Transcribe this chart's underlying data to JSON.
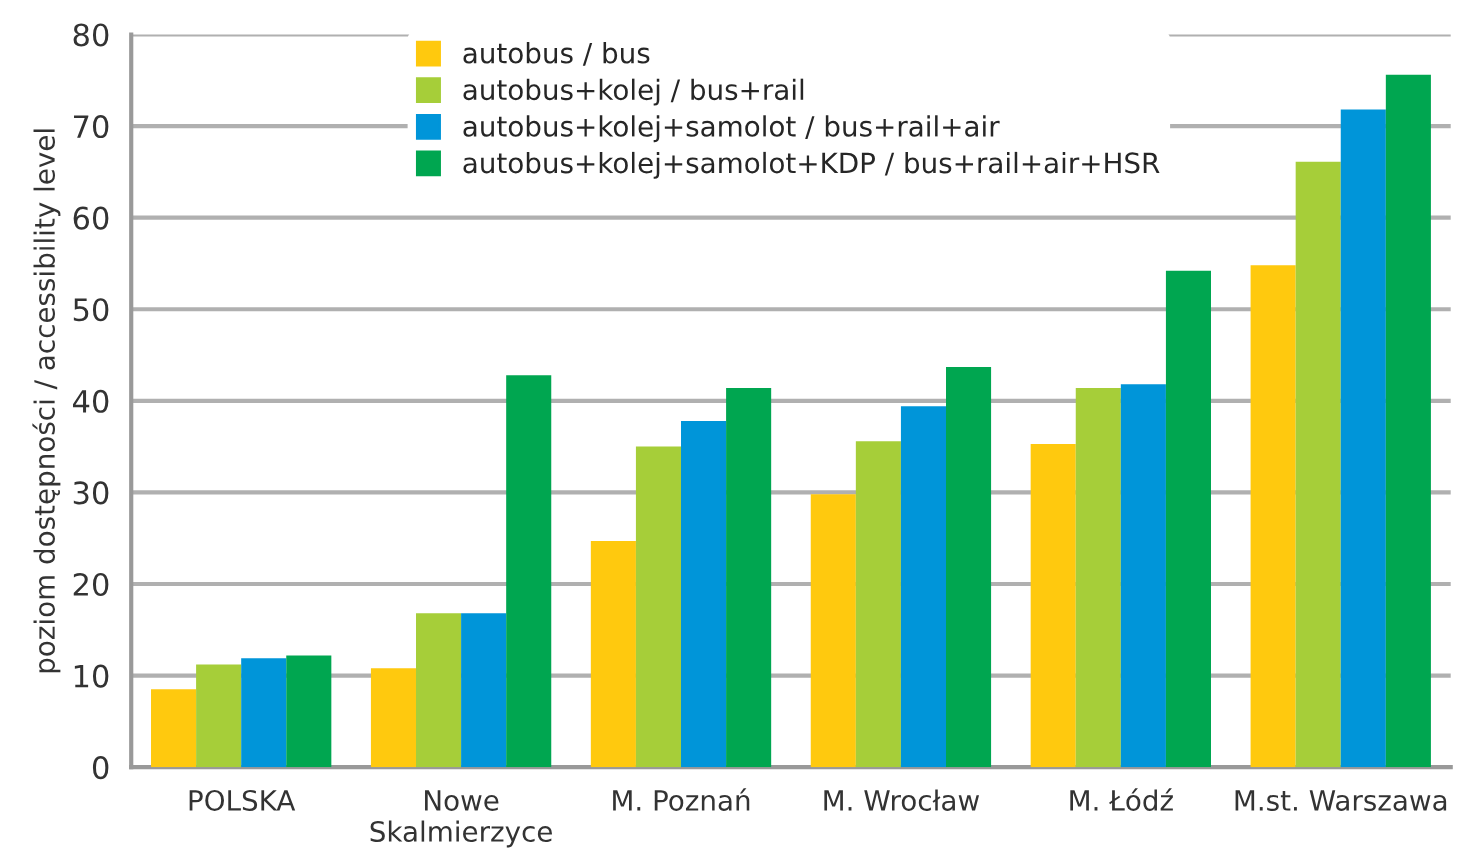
{
  "chart_data": {
    "type": "bar",
    "ylabel": "poziom dostępności / accessibility level",
    "categories": [
      "POLSKA",
      "Nowe\nSkalmierzyce",
      "M. Poznań",
      "M. Wrocław",
      "M. Łódź",
      "M.st. Warszawa"
    ],
    "series": [
      {
        "name": "autobus / bus",
        "color": "#ffc90e",
        "values": [
          8.5,
          10.8,
          24.7,
          29.8,
          35.3,
          54.8
        ]
      },
      {
        "name": "autobus+kolej / bus+rail",
        "color": "#a6ce39",
        "values": [
          11.2,
          16.8,
          35.0,
          35.6,
          41.4,
          66.1
        ]
      },
      {
        "name": "autobus+kolej+samolot / bus+rail+air",
        "color": "#0095d9",
        "values": [
          11.9,
          16.8,
          37.8,
          39.4,
          41.8,
          71.8
        ]
      },
      {
        "name": "autobus+kolej+samolot+KDP / bus+rail+air+HSR",
        "color": "#00a650",
        "values": [
          12.2,
          42.8,
          41.4,
          43.7,
          54.2,
          75.6
        ]
      }
    ],
    "ylim": [
      0,
      80
    ],
    "yticks": [
      0,
      10,
      20,
      30,
      40,
      50,
      60,
      70,
      80
    ],
    "grid": "y",
    "legend": "top left"
  }
}
